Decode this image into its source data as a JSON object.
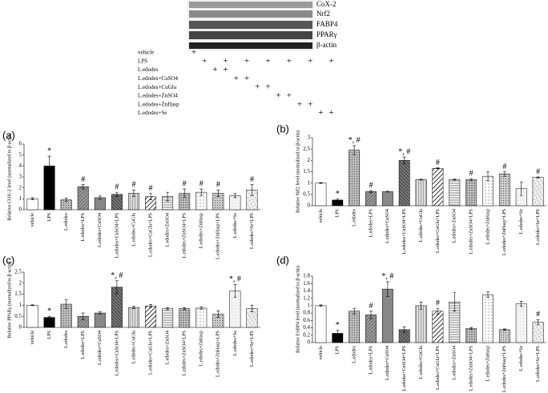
{
  "blot": {
    "labels": [
      "CoX-2",
      "Nrf2",
      "FABP4",
      "PPARγ",
      "β-actin"
    ]
  },
  "treatment_table": {
    "rows": [
      {
        "label": "vehicle",
        "cells": [
          "+",
          null,
          null,
          null,
          null,
          null,
          null,
          null,
          null,
          null,
          null,
          null,
          null,
          null
        ]
      },
      {
        "label": "LPS",
        "cells": [
          null,
          "+",
          null,
          "+",
          null,
          "+",
          null,
          "+",
          null,
          "+",
          null,
          "+",
          null,
          "+"
        ]
      },
      {
        "label": "L.edodes",
        "cells": [
          null,
          null,
          "+",
          "+",
          null,
          null,
          null,
          null,
          null,
          null,
          null,
          null,
          null,
          null
        ]
      },
      {
        "label": "L.edodes+CuSO4",
        "cells": [
          null,
          null,
          null,
          null,
          "+",
          "+",
          null,
          null,
          null,
          null,
          null,
          null,
          null,
          null
        ]
      },
      {
        "label": "L.edodes+CuGlu",
        "cells": [
          null,
          null,
          null,
          null,
          null,
          null,
          "+",
          "+",
          null,
          null,
          null,
          null,
          null,
          null
        ]
      },
      {
        "label": "L.edodes+ZnSO4",
        "cells": [
          null,
          null,
          null,
          null,
          null,
          null,
          null,
          null,
          "+",
          "+",
          null,
          null,
          null,
          null
        ]
      },
      {
        "label": "L.edodes+ZnHasp",
        "cells": [
          null,
          null,
          null,
          null,
          null,
          null,
          null,
          null,
          null,
          null,
          "+",
          "+",
          null,
          null
        ]
      },
      {
        "label": "L.edodes+Se",
        "cells": [
          null,
          null,
          null,
          null,
          null,
          null,
          null,
          null,
          null,
          null,
          null,
          null,
          "+",
          "+"
        ]
      }
    ]
  },
  "chart_data": [
    {
      "type": "bar",
      "panel_label": "(a)",
      "y_label": "Relative COX-2 level (normalized to β-actin)",
      "categories": [
        "vehicle",
        "LPS",
        "L.edodes",
        "L.edodes+LPS",
        "L.edodes+CuSO4",
        "L.edodes+CuSO4+LPS",
        "L.edodes+CuGlu",
        "L.edodes+CuGlu+LPS",
        "L.edodes+ZnSO4",
        "L.edodes+ZnSO4+LPS",
        "L.edodes+ZnHasp",
        "L.edodes+ZnHasp+LPS",
        "L.edodes+Se",
        "L.edodes+Se+LPS"
      ],
      "values": [
        1,
        4,
        0.9,
        2.1,
        1.1,
        1.4,
        1.5,
        1.2,
        1.2,
        1.5,
        1.6,
        1.5,
        1.3,
        1.8
      ],
      "errors": [
        0.1,
        0.9,
        0.15,
        0.2,
        0.15,
        0.2,
        0.3,
        0.3,
        0.4,
        0.4,
        0.3,
        0.3,
        0.2,
        0.5
      ],
      "annotations": [
        null,
        "*",
        null,
        "#",
        null,
        "#",
        "#",
        "#",
        null,
        "#",
        "#",
        "#",
        null,
        "#"
      ],
      "ylim": [
        0,
        6
      ],
      "yticks": [
        0,
        1,
        2,
        3,
        4,
        5,
        6
      ]
    },
    {
      "type": "bar",
      "panel_label": "(b)",
      "y_label": "Relative Nrf2 level (normalized to β-actin)",
      "categories": [
        "vehicle",
        "LPS",
        "L.edodes",
        "L.edodes+LPS",
        "L.edodes+CuSO4",
        "L.edodes+CuSO4+LPS",
        "L.edodes+CuGlu",
        "L.edodes+CuGlu+LPS",
        "L.edodes+ZnSO4",
        "L.edodes+ZnSO4+LPS",
        "L.edodes+ZnHasp",
        "L.edodes+ZnHasp+LPS",
        "L.edodes+Se",
        "L.edodes+Se+LPS"
      ],
      "values": [
        1,
        0.25,
        2.45,
        0.62,
        0.62,
        2,
        1.15,
        1.65,
        1.15,
        1.15,
        1.3,
        1.4,
        0.75,
        1.25
      ],
      "errors": [
        0.02,
        0.05,
        0.2,
        0.05,
        0.02,
        0.15,
        0.02,
        0.02,
        0.02,
        0.05,
        0.2,
        0.1,
        0.3,
        0.02
      ],
      "annotations": [
        null,
        "*",
        "*, #",
        "#",
        null,
        "*, #",
        null,
        "#",
        null,
        "#",
        null,
        "#",
        null,
        "#"
      ],
      "ylim": [
        0,
        3
      ],
      "yticks": [
        0,
        0.5,
        1,
        1.5,
        2,
        2.5,
        3
      ]
    },
    {
      "type": "bar",
      "panel_label": "(c)",
      "y_label": "Relative PPARγ (normalized to β-actin)",
      "categories": [
        "vehicle",
        "LPS",
        "L.edodes",
        "L.edodes+LPS",
        "L.edodes+CuSO4",
        "L.edodes+CuSO4+LPS",
        "L.edodes+CuGlu",
        "L.edodes+CuGlu+LPS",
        "L.edodes+ZnSO4",
        "L.edodes+ZnSO4+LPS",
        "L.edodes+ZnHasp",
        "L.edodes+ZnHasp+LPS",
        "L.edodes+Se",
        "L.edodes+Se+LPS"
      ],
      "values": [
        1,
        0.45,
        1.05,
        0.5,
        0.65,
        1.82,
        0.9,
        0.97,
        0.85,
        0.85,
        0.87,
        0.6,
        1.65,
        0.85
      ],
      "errors": [
        0.02,
        0.05,
        0.2,
        0.15,
        0.05,
        0.3,
        0.05,
        0.07,
        0.05,
        0.05,
        0.05,
        0.15,
        0.3,
        0.15
      ],
      "annotations": [
        null,
        "*",
        null,
        null,
        null,
        "*, #",
        null,
        null,
        null,
        null,
        null,
        null,
        "*, #",
        null
      ],
      "ylim": [
        0,
        2.5
      ],
      "yticks": [
        0,
        0.5,
        1,
        1.5,
        2,
        2.5
      ]
    },
    {
      "type": "bar",
      "panel_label": "(d)",
      "y_label": "Relative FABP4 level (normalized to β-actin)",
      "categories": [
        "vehicle",
        "LPS",
        "L.edodes",
        "L.edodes+LPS",
        "L.edodes+CuSO4",
        "L.edodes+CuSO4+LPS",
        "L.edodes+CuGlu",
        "L.edodes+CuGlu+LPS",
        "L.edodes+ZnSO4",
        "L.edodes+ZnSO4+LPS",
        "L.edodes+ZnHasp",
        "L.edodes+ZnHasp+LPS",
        "L.edodes+Se",
        "L.edodes+Se+LPS"
      ],
      "values": [
        1,
        0.25,
        0.85,
        0.75,
        1.45,
        0.35,
        1,
        0.85,
        1.1,
        0.38,
        1.3,
        0.35,
        1.05,
        0.55
      ],
      "errors": [
        0.02,
        0.08,
        0.08,
        0.1,
        0.2,
        0.08,
        0.1,
        0.08,
        0.25,
        0.03,
        0.08,
        0.02,
        0.07,
        0.07
      ],
      "annotations": [
        null,
        "*",
        null,
        "#",
        "*, #",
        null,
        null,
        "#",
        null,
        null,
        null,
        null,
        null,
        "#"
      ],
      "ylim": [
        0,
        1.8
      ],
      "yticks": [
        0,
        0.2,
        0.4,
        0.6,
        0.8,
        1,
        1.2,
        1.4,
        1.6,
        1.8
      ]
    }
  ]
}
